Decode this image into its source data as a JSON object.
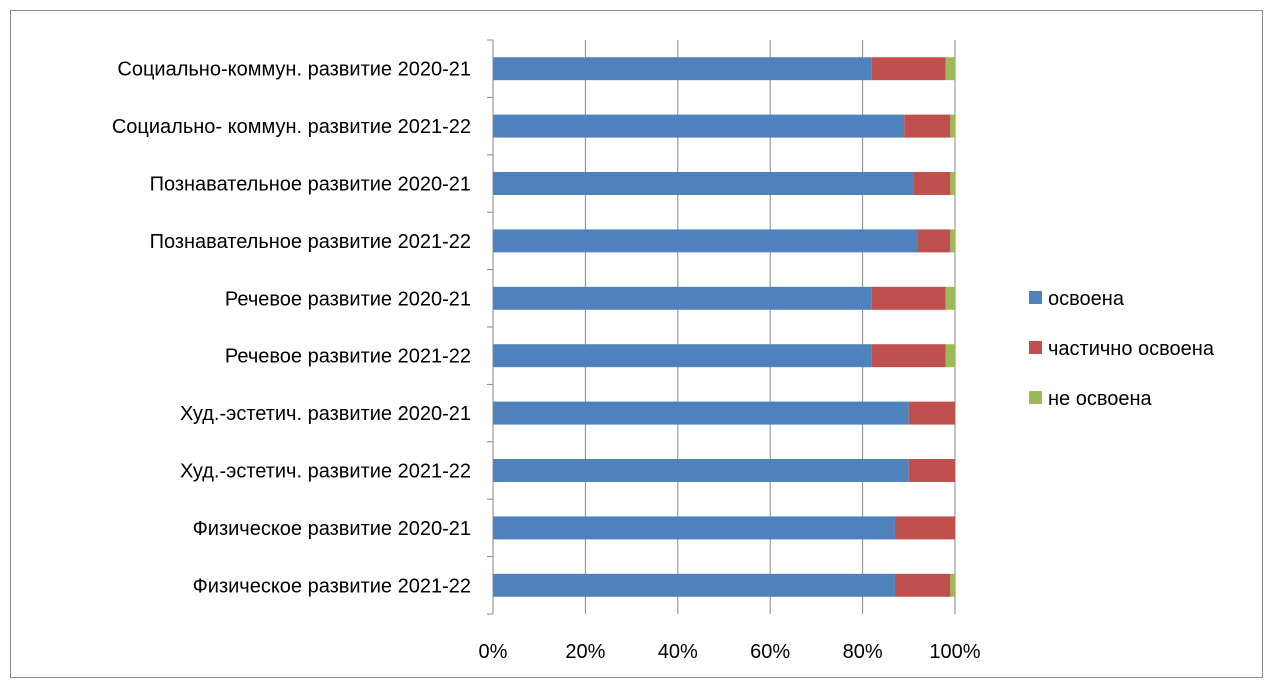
{
  "chart_data": {
    "type": "bar",
    "orientation": "horizontal",
    "stacked": "percent",
    "categories": [
      "Социально-коммун. развитие 2020-21",
      "Социально- коммун. развитие 2021-22",
      "Познавательное развитие 2020-21",
      "Познавательное развитие 2021-22",
      "Речевое развитие 2020-21",
      "Речевое развитие 2021-22",
      "Худ.-эстетич. развитие 2020-21",
      "Худ.-эстетич. развитие 2021-22",
      "Физическое развитие 2020-21",
      "Физическое развитие 2021-22"
    ],
    "series": [
      {
        "name": "освоена",
        "color": "#4f81bd",
        "values": [
          82,
          89,
          91,
          92,
          82,
          82,
          90,
          90,
          87,
          87
        ]
      },
      {
        "name": "частично освоена",
        "color": "#c0504d",
        "values": [
          16,
          10,
          8,
          7,
          16,
          16,
          10,
          10,
          13,
          12
        ]
      },
      {
        "name": "не освоена",
        "color": "#9bbb59",
        "values": [
          2,
          1,
          1,
          1,
          2,
          2,
          0,
          0,
          0,
          1
        ]
      }
    ],
    "x_ticks": [
      "0%",
      "20%",
      "40%",
      "60%",
      "80%",
      "100%"
    ],
    "xlim": [
      0,
      100
    ],
    "grid": true,
    "legend_position": "right",
    "title": "",
    "xlabel": "",
    "ylabel": ""
  }
}
